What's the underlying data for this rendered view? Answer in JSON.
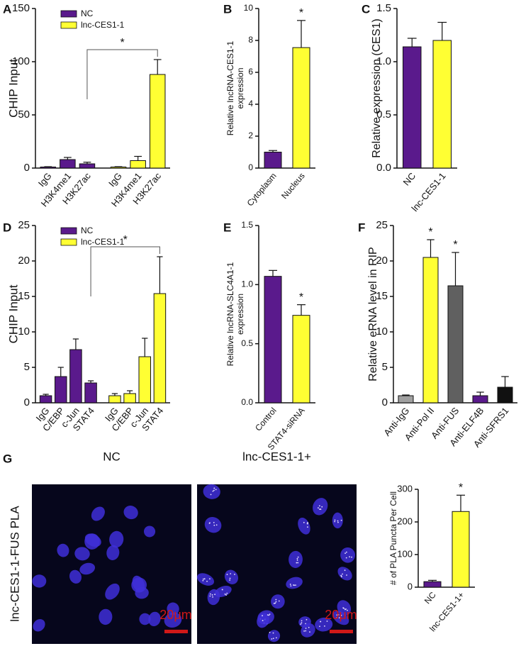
{
  "chart_data": [
    {
      "type": "bar",
      "panel": "A",
      "ylabel": [
        "CHIP Input"
      ],
      "categories": [
        "IgG",
        "H3K4me1",
        "H3K27ac"
      ],
      "series": [
        {
          "name": "NC",
          "color": "#5a1a8c",
          "values": [
            1,
            8,
            4
          ],
          "errors": [
            0.3,
            2,
            1.5
          ]
        },
        {
          "name": "lnc-CES1-1",
          "color": "#ffff33",
          "values": [
            1,
            7,
            88
          ],
          "errors": [
            0.3,
            4,
            14
          ]
        }
      ],
      "bracket_label": "*",
      "ylim": [
        0,
        150
      ],
      "yticks": [
        0,
        50,
        100,
        150
      ]
    },
    {
      "type": "bar",
      "panel": "B",
      "ylabel": [
        "Relative lncRNA-CES1-1",
        "expression"
      ],
      "categories": [
        "Cytoplasm",
        "Nucleus"
      ],
      "values": [
        1.0,
        7.55
      ],
      "errors": [
        0.1,
        1.7
      ],
      "colors": [
        "#5a1a8c",
        "#ffff33"
      ],
      "significance": [
        null,
        "*"
      ],
      "ylim": [
        0,
        10
      ],
      "yticks": [
        0,
        2,
        4,
        6,
        8,
        10
      ]
    },
    {
      "type": "bar",
      "panel": "C",
      "ylabel": [
        "Relative expression (CES1)"
      ],
      "categories": [
        "NC",
        "lnc-CES1-1"
      ],
      "values": [
        1.14,
        1.2
      ],
      "errors": [
        0.08,
        0.17
      ],
      "colors": [
        "#5a1a8c",
        "#ffff33"
      ],
      "ylim": [
        0,
        1.5
      ],
      "yticks": [
        {
          "value": 0,
          "label": "0.0"
        },
        0.5,
        {
          "value": 1,
          "label": "1.0"
        },
        1.5
      ]
    },
    {
      "type": "bar",
      "panel": "D",
      "ylabel": [
        "CHIP Input"
      ],
      "categories": [
        "IgG",
        "C/EBP",
        "c-Jun",
        "STAT4"
      ],
      "series": [
        {
          "name": "NC",
          "color": "#5a1a8c",
          "values": [
            1,
            3.7,
            7.5,
            2.8
          ],
          "errors": [
            0.2,
            1.3,
            1.5,
            0.3
          ]
        },
        {
          "name": "lnc-CES1-1",
          "color": "#ffff33",
          "values": [
            1,
            1.3,
            6.5,
            15.4
          ],
          "errors": [
            0.3,
            0.4,
            2.6,
            5.2
          ]
        }
      ],
      "bracket_label": "*",
      "ylim": [
        0,
        25
      ],
      "yticks": [
        0,
        5,
        10,
        15,
        20,
        25
      ]
    },
    {
      "type": "bar",
      "panel": "E",
      "ylabel": [
        "Relative lncRNA-SLC4A1-1",
        "expression"
      ],
      "categories": [
        "Control",
        "STAT4-siRNA"
      ],
      "values": [
        1.07,
        0.74
      ],
      "errors": [
        0.05,
        0.09
      ],
      "colors": [
        "#5a1a8c",
        "#ffff33"
      ],
      "significance": [
        null,
        "*"
      ],
      "ylim": [
        0,
        1.5
      ],
      "yticks": [
        {
          "value": 0,
          "label": "0.0"
        },
        0.5,
        {
          "value": 1,
          "label": "1.0"
        },
        1.5
      ]
    },
    {
      "type": "bar",
      "panel": "F",
      "ylabel": [
        "Relative eRNA level in RIP"
      ],
      "categories": [
        "Anti-IgG",
        "Anti-Pol II",
        "Anti-FUS",
        "Anti-ELF4B",
        "Anti-SFRS1"
      ],
      "values": [
        1,
        20.5,
        16.5,
        1,
        2.2
      ],
      "errors": [
        0.1,
        2.5,
        4.7,
        0.5,
        1.5
      ],
      "colors": [
        "#a0a0a0",
        "#ffff33",
        "#606060",
        "#5a1a8c",
        "#111111"
      ],
      "significance": [
        null,
        "*",
        "*",
        null,
        null
      ],
      "ylim": [
        0,
        25
      ],
      "yticks": [
        0,
        5,
        10,
        15,
        20,
        25
      ]
    },
    {
      "type": "bar",
      "ylabel": [
        "# of PLA Puncta Per Cell"
      ],
      "categories": [
        "NC",
        "lnc-CES1-1+"
      ],
      "values": [
        17,
        232
      ],
      "errors": [
        4,
        50
      ],
      "colors": [
        "#5a1a8c",
        "#ffff33"
      ],
      "significance": [
        null,
        "*"
      ],
      "ylim": [
        0,
        300
      ],
      "yticks": [
        0,
        100,
        200,
        300
      ]
    }
  ],
  "micrographs": {
    "panel": "G",
    "side_label": "lnc-CES1-1-FUS PLA",
    "images": [
      {
        "title": "NC",
        "scale_bar": "20μm"
      },
      {
        "title": "lnc-CES1-1+",
        "scale_bar": "20μm"
      }
    ]
  }
}
